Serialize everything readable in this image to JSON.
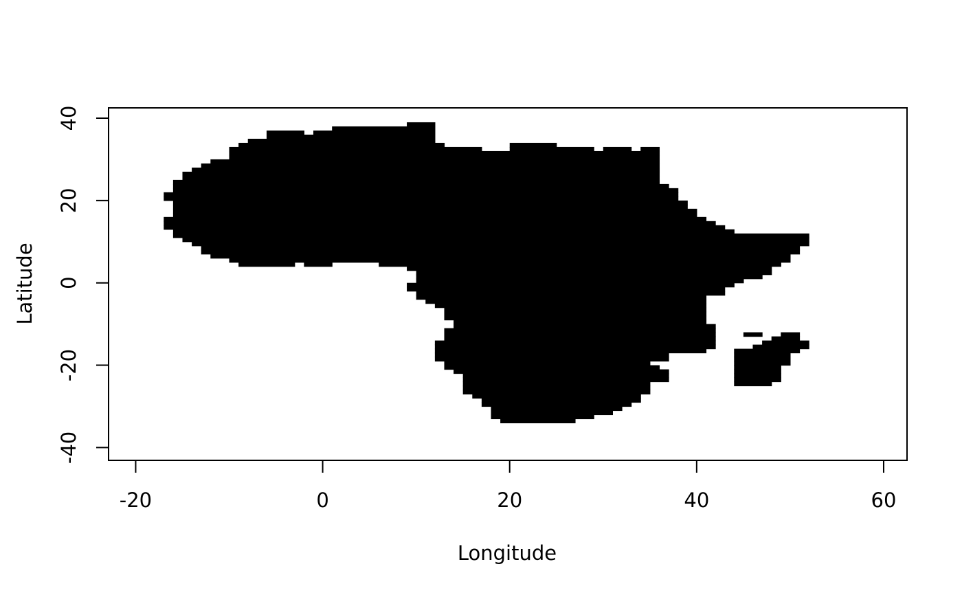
{
  "chart_data": {
    "type": "raster",
    "xlabel": "Longitude",
    "ylabel": "Latitude",
    "xlim": [
      -22.9,
      62.5
    ],
    "ylim": [
      -43.1,
      42.5
    ],
    "xticks": [
      -20,
      0,
      20,
      40,
      60
    ],
    "yticks": [
      -40,
      -20,
      0,
      20,
      40
    ],
    "cell_size_deg": 1,
    "fill_color": "#000000",
    "background_color": "#ffffff",
    "grid": false,
    "legend": "none",
    "row_labels_note": "each row = one 1-degree latitude band; runs = [lon_start, lon_end] filled spans in degrees",
    "rows": [
      {
        "lat": 38,
        "runs": [
          [
            9,
            11
          ]
        ]
      },
      {
        "lat": 37,
        "runs": [
          [
            1,
            11
          ]
        ]
      },
      {
        "lat": 36,
        "runs": [
          [
            -6,
            -3
          ],
          [
            -1,
            11
          ]
        ]
      },
      {
        "lat": 35,
        "runs": [
          [
            -6,
            11
          ]
        ]
      },
      {
        "lat": 34,
        "runs": [
          [
            -8,
            11
          ]
        ]
      },
      {
        "lat": 33,
        "runs": [
          [
            -9,
            12
          ],
          [
            20,
            24
          ]
        ]
      },
      {
        "lat": 32,
        "runs": [
          [
            -10,
            16
          ],
          [
            20,
            28
          ],
          [
            30,
            32
          ],
          [
            34,
            35
          ]
        ]
      },
      {
        "lat": 31,
        "runs": [
          [
            -10,
            35
          ]
        ]
      },
      {
        "lat": 30,
        "runs": [
          [
            -10,
            35
          ]
        ]
      },
      {
        "lat": 29,
        "runs": [
          [
            -12,
            35
          ]
        ]
      },
      {
        "lat": 28,
        "runs": [
          [
            -13,
            35
          ]
        ]
      },
      {
        "lat": 27,
        "runs": [
          [
            -14,
            35
          ]
        ]
      },
      {
        "lat": 26,
        "runs": [
          [
            -15,
            35
          ]
        ]
      },
      {
        "lat": 25,
        "runs": [
          [
            -15,
            35
          ]
        ]
      },
      {
        "lat": 24,
        "runs": [
          [
            -16,
            35
          ]
        ]
      },
      {
        "lat": 23,
        "runs": [
          [
            -16,
            36
          ]
        ]
      },
      {
        "lat": 22,
        "runs": [
          [
            -16,
            37
          ]
        ]
      },
      {
        "lat": 21,
        "runs": [
          [
            -17,
            37
          ]
        ]
      },
      {
        "lat": 20,
        "runs": [
          [
            -17,
            37
          ]
        ]
      },
      {
        "lat": 19,
        "runs": [
          [
            -16,
            38
          ]
        ]
      },
      {
        "lat": 18,
        "runs": [
          [
            -16,
            38
          ]
        ]
      },
      {
        "lat": 17,
        "runs": [
          [
            -16,
            39
          ]
        ]
      },
      {
        "lat": 16,
        "runs": [
          [
            -16,
            39
          ]
        ]
      },
      {
        "lat": 15,
        "runs": [
          [
            -17,
            40
          ]
        ]
      },
      {
        "lat": 14,
        "runs": [
          [
            -17,
            41
          ]
        ]
      },
      {
        "lat": 13,
        "runs": [
          [
            -17,
            42
          ]
        ]
      },
      {
        "lat": 12,
        "runs": [
          [
            -16,
            43
          ]
        ]
      },
      {
        "lat": 11,
        "runs": [
          [
            -16,
            51
          ]
        ]
      },
      {
        "lat": 10,
        "runs": [
          [
            -15,
            51
          ]
        ]
      },
      {
        "lat": 9,
        "runs": [
          [
            -14,
            51
          ]
        ]
      },
      {
        "lat": 8,
        "runs": [
          [
            -13,
            50
          ]
        ]
      },
      {
        "lat": 7,
        "runs": [
          [
            -13,
            50
          ]
        ]
      },
      {
        "lat": 6,
        "runs": [
          [
            -12,
            49
          ]
        ]
      },
      {
        "lat": 5,
        "runs": [
          [
            -10,
            49
          ]
        ]
      },
      {
        "lat": 4,
        "runs": [
          [
            -9,
            -4
          ],
          [
            -2,
            0
          ],
          [
            6,
            48
          ]
        ]
      },
      {
        "lat": 3,
        "runs": [
          [
            9,
            47
          ]
        ]
      },
      {
        "lat": 2,
        "runs": [
          [
            10,
            47
          ]
        ]
      },
      {
        "lat": 1,
        "runs": [
          [
            10,
            46
          ]
        ]
      },
      {
        "lat": 0,
        "runs": [
          [
            10,
            44
          ]
        ]
      },
      {
        "lat": -1,
        "runs": [
          [
            9,
            43
          ]
        ]
      },
      {
        "lat": -2,
        "runs": [
          [
            9,
            42
          ]
        ]
      },
      {
        "lat": -3,
        "runs": [
          [
            10,
            42
          ]
        ]
      },
      {
        "lat": -4,
        "runs": [
          [
            10,
            40
          ]
        ]
      },
      {
        "lat": -5,
        "runs": [
          [
            11,
            40
          ]
        ]
      },
      {
        "lat": -6,
        "runs": [
          [
            12,
            40
          ]
        ]
      },
      {
        "lat": -7,
        "runs": [
          [
            13,
            40
          ]
        ]
      },
      {
        "lat": -8,
        "runs": [
          [
            13,
            40
          ]
        ]
      },
      {
        "lat": -9,
        "runs": [
          [
            13,
            40
          ]
        ]
      },
      {
        "lat": -10,
        "runs": [
          [
            14,
            40
          ]
        ]
      },
      {
        "lat": -11,
        "runs": [
          [
            14,
            41
          ]
        ]
      },
      {
        "lat": -12,
        "runs": [
          [
            13,
            41
          ]
        ]
      },
      {
        "lat": -13,
        "runs": [
          [
            13,
            41
          ],
          [
            45,
            46
          ],
          [
            49,
            50
          ]
        ]
      },
      {
        "lat": -14,
        "runs": [
          [
            13,
            41
          ],
          [
            48,
            50
          ]
        ]
      },
      {
        "lat": -15,
        "runs": [
          [
            12,
            41
          ],
          [
            47,
            51
          ]
        ]
      },
      {
        "lat": -16,
        "runs": [
          [
            12,
            41
          ],
          [
            46,
            51
          ]
        ]
      },
      {
        "lat": -17,
        "runs": [
          [
            12,
            40
          ],
          [
            44,
            50
          ]
        ]
      },
      {
        "lat": -18,
        "runs": [
          [
            12,
            36
          ],
          [
            44,
            49
          ]
        ]
      },
      {
        "lat": -19,
        "runs": [
          [
            12,
            36
          ],
          [
            44,
            49
          ]
        ]
      },
      {
        "lat": -20,
        "runs": [
          [
            13,
            34
          ],
          [
            44,
            49
          ]
        ]
      },
      {
        "lat": -21,
        "runs": [
          [
            13,
            35
          ],
          [
            44,
            48
          ]
        ]
      },
      {
        "lat": -22,
        "runs": [
          [
            14,
            36
          ],
          [
            44,
            48
          ]
        ]
      },
      {
        "lat": -23,
        "runs": [
          [
            15,
            36
          ],
          [
            44,
            48
          ]
        ]
      },
      {
        "lat": -24,
        "runs": [
          [
            15,
            36
          ],
          [
            44,
            48
          ]
        ]
      },
      {
        "lat": -25,
        "runs": [
          [
            15,
            34
          ],
          [
            44,
            47
          ]
        ]
      },
      {
        "lat": -26,
        "runs": [
          [
            15,
            34
          ]
        ]
      },
      {
        "lat": -27,
        "runs": [
          [
            15,
            34
          ]
        ]
      },
      {
        "lat": -28,
        "runs": [
          [
            16,
            33
          ]
        ]
      },
      {
        "lat": -29,
        "runs": [
          [
            17,
            33
          ]
        ]
      },
      {
        "lat": -30,
        "runs": [
          [
            17,
            32
          ]
        ]
      },
      {
        "lat": -31,
        "runs": [
          [
            18,
            31
          ]
        ]
      },
      {
        "lat": -32,
        "runs": [
          [
            18,
            30
          ]
        ]
      },
      {
        "lat": -33,
        "runs": [
          [
            18,
            28
          ]
        ]
      },
      {
        "lat": -34,
        "runs": [
          [
            19,
            26
          ]
        ]
      }
    ]
  }
}
